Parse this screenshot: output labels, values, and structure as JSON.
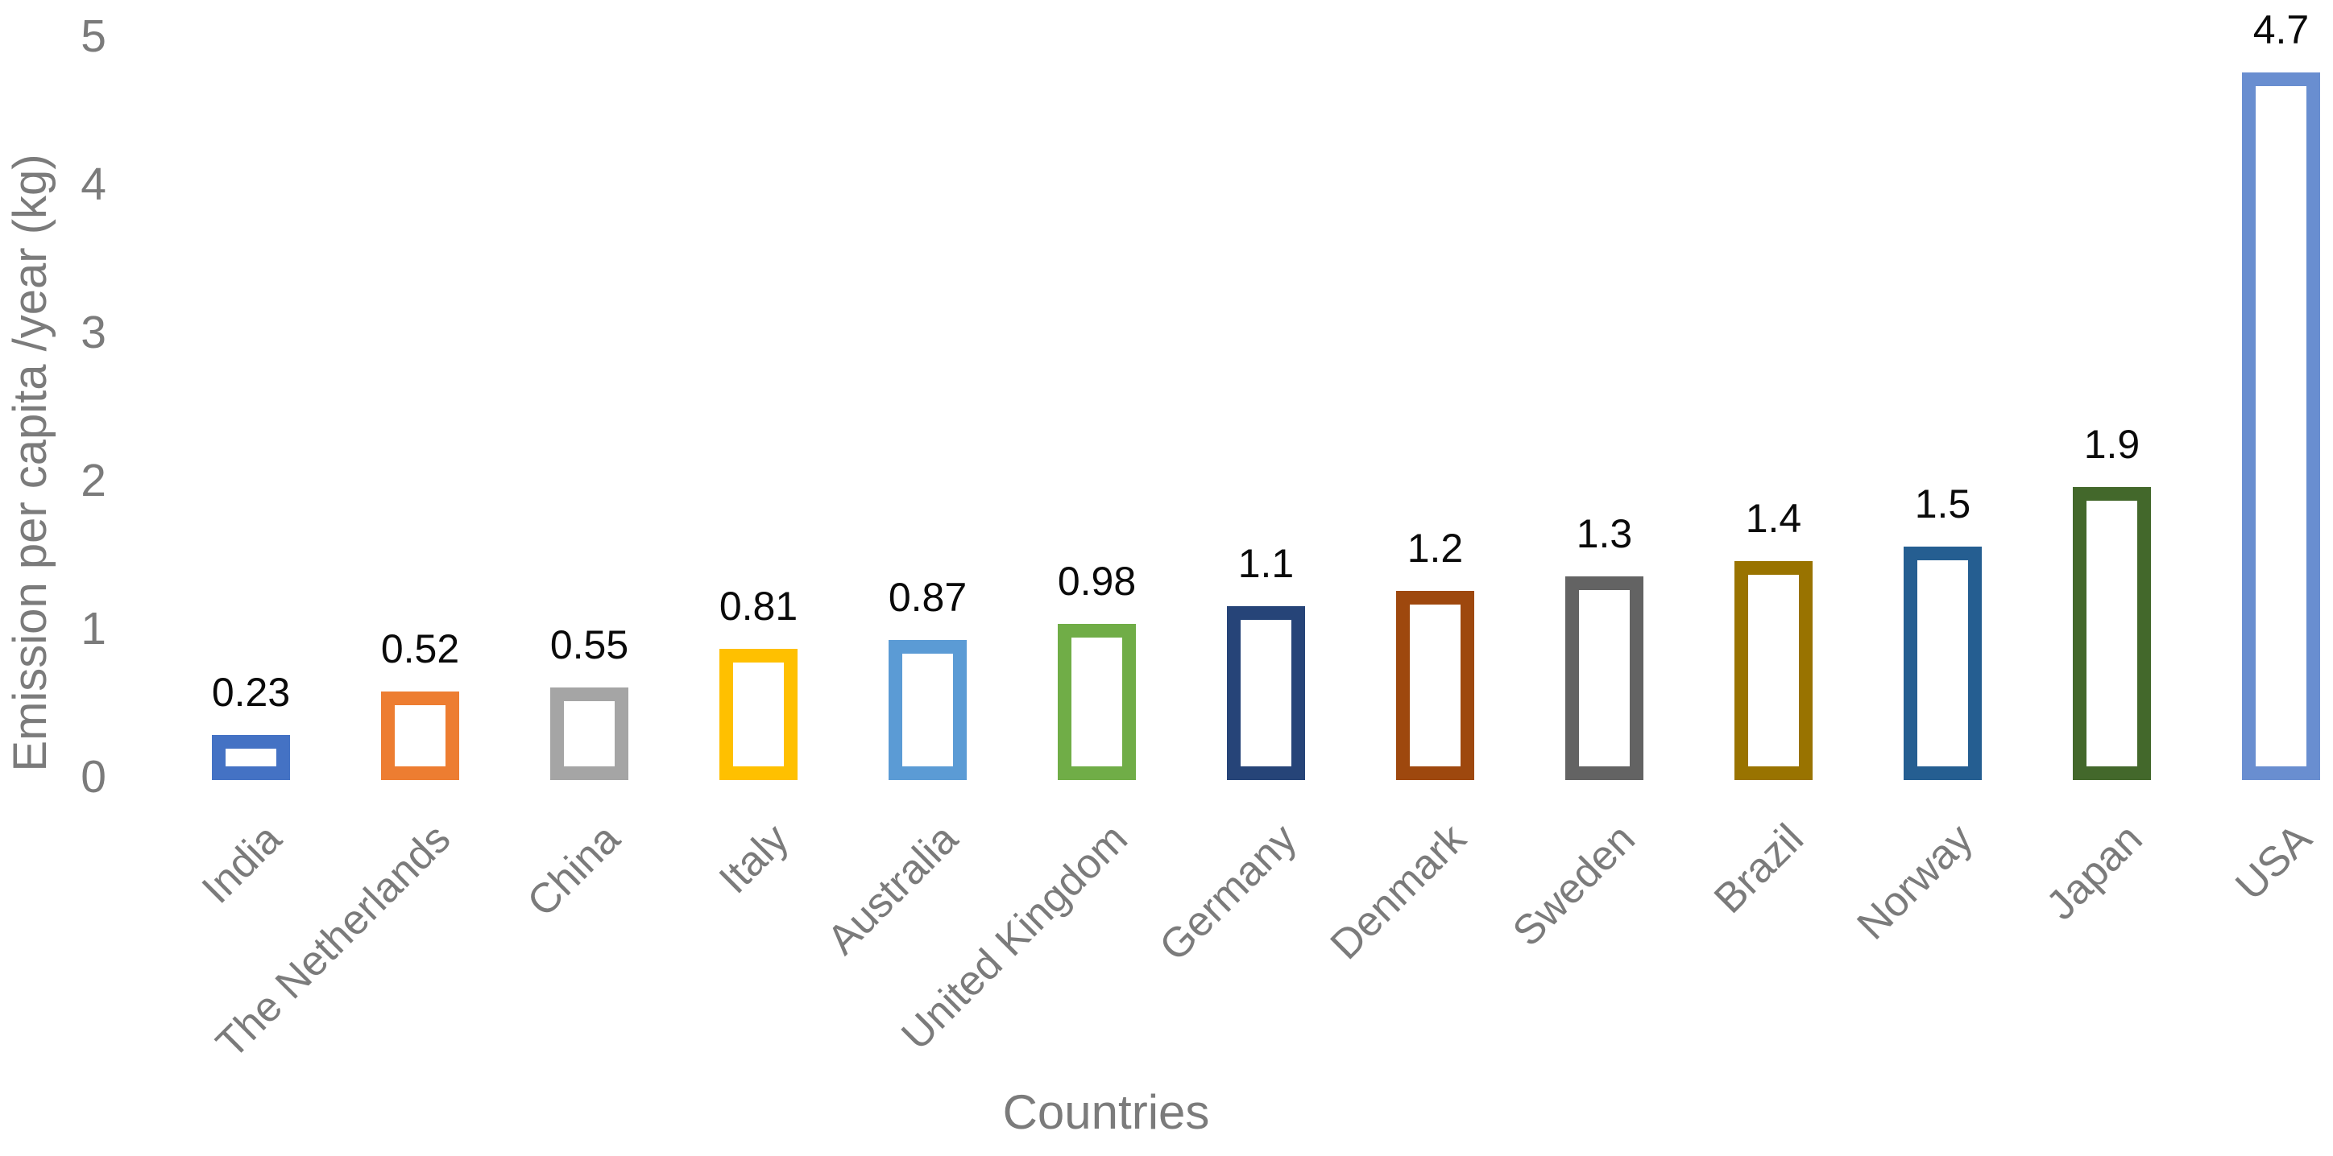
{
  "chart_data": {
    "type": "bar",
    "title": "",
    "xlabel": "Countries",
    "ylabel": "Emission per capita /year (kg)",
    "ylim": [
      0,
      5
    ],
    "y_ticks": [
      0,
      1,
      2,
      3,
      4,
      5
    ],
    "grid": false,
    "legend": false,
    "axis_lines": false,
    "bar_style": "hollow bars with thick colored outlines, value labels above bars, category labels rotated 45 degrees",
    "categories": [
      "India",
      "The Netherlands",
      "China",
      "Italy",
      "Australia",
      "United Kingdom",
      "Germany",
      "Denmark",
      "Sweden",
      "Brazil",
      "Norway",
      "Japan",
      "USA"
    ],
    "values": [
      0.23,
      0.52,
      0.55,
      0.81,
      0.87,
      0.98,
      1.1,
      1.2,
      1.3,
      1.4,
      1.5,
      1.9,
      4.7
    ],
    "value_labels": [
      "0.23",
      "0.52",
      "0.55",
      "0.81",
      "0.87",
      "0.98",
      "1.1",
      "1.2",
      "1.3",
      "1.4",
      "1.5",
      "1.9",
      "4.7"
    ],
    "colors": [
      "#4472C4",
      "#ED7D31",
      "#A5A5A5",
      "#FFC000",
      "#5B9BD5",
      "#70AD47",
      "#264478",
      "#9E480E",
      "#636363",
      "#997300",
      "#255E91",
      "#43682B",
      "#698ED0"
    ],
    "text_colors": {
      "axis_text": "#7b7b7b",
      "data_labels": "#0a0a0a"
    },
    "background": "#ffffff"
  }
}
